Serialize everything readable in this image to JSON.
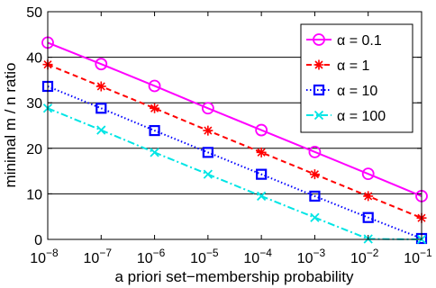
{
  "chart_data": {
    "type": "line",
    "title": "",
    "xlabel": "a priori set−membership probability",
    "ylabel": "minimal m / n ratio",
    "x_scale": "log",
    "x": [
      1e-08,
      1e-07,
      1e-06,
      1e-05,
      0.0001,
      0.001,
      0.01,
      0.1
    ],
    "x_tick_labels": [
      {
        "base": "10",
        "exp": "−8"
      },
      {
        "base": "10",
        "exp": "−7"
      },
      {
        "base": "10",
        "exp": "−6"
      },
      {
        "base": "10",
        "exp": "−5"
      },
      {
        "base": "10",
        "exp": "−4"
      },
      {
        "base": "10",
        "exp": "−3"
      },
      {
        "base": "10",
        "exp": "−2"
      },
      {
        "base": "10",
        "exp": "−1"
      }
    ],
    "xlim": [
      1e-08,
      0.1
    ],
    "ylim": [
      0,
      50
    ],
    "y_ticks": [
      0,
      10,
      20,
      30,
      40,
      50
    ],
    "y_tick_labels": [
      "0",
      "10",
      "20",
      "30",
      "40",
      "50"
    ],
    "grid": "horizontal",
    "legend_position": "top-right",
    "series": [
      {
        "name": "α = 0.1",
        "color": "#ff00ff",
        "line_style": "solid",
        "marker": "circle",
        "values": [
          43.2,
          38.5,
          33.7,
          28.8,
          24.0,
          19.2,
          14.4,
          9.5
        ]
      },
      {
        "name": "α = 1",
        "color": "#ff0000",
        "line_style": "dashed",
        "marker": "star",
        "values": [
          38.4,
          33.6,
          28.8,
          23.9,
          19.1,
          14.3,
          9.5,
          4.7
        ]
      },
      {
        "name": "α = 10",
        "color": "#0000ff",
        "line_style": "dotted",
        "marker": "square",
        "values": [
          33.6,
          28.8,
          23.9,
          19.1,
          14.3,
          9.5,
          4.8,
          0.2
        ]
      },
      {
        "name": "α = 100",
        "color": "#00e5e5",
        "line_style": "dashdot",
        "marker": "x",
        "values": [
          28.8,
          24.0,
          19.1,
          14.3,
          9.5,
          4.8,
          0.1,
          0.0
        ]
      }
    ]
  }
}
